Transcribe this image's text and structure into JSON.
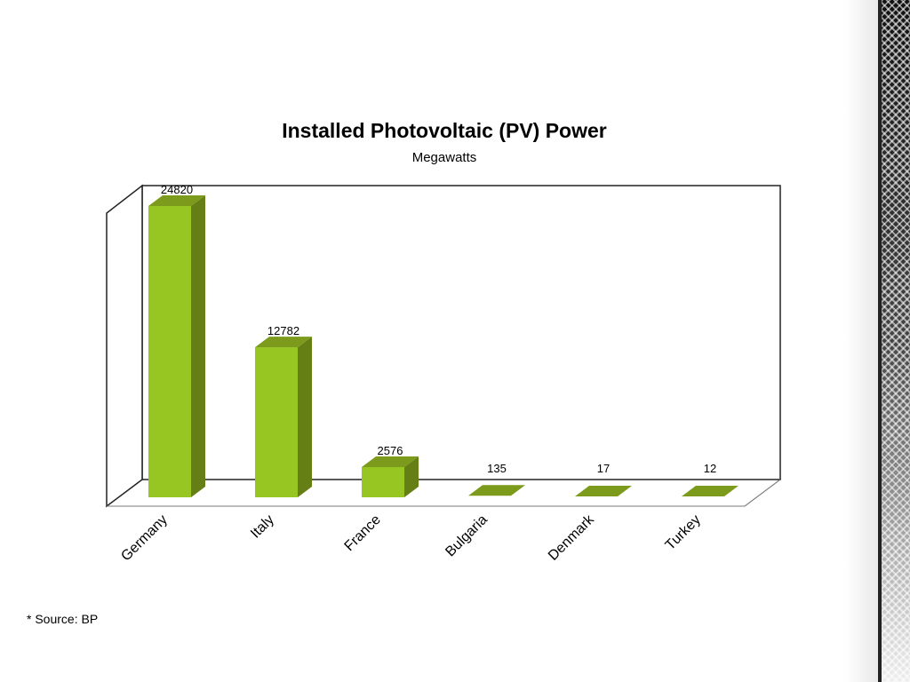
{
  "chart_data": {
    "type": "bar",
    "title": "Installed Photovoltaic (PV) Power",
    "subtitle": "Megawatts",
    "categories": [
      "Germany",
      "Italy",
      "France",
      "Bulgaria",
      "Denmark",
      "Turkey"
    ],
    "values": [
      24820,
      12782,
      2576,
      135,
      17,
      12
    ],
    "data_labels": [
      "24820",
      "12782",
      "2576",
      "135",
      "17",
      "12"
    ],
    "style": "3d",
    "bar_color": "#97c623",
    "grid": false,
    "legend": "none"
  },
  "footnote": "* Source: BP"
}
